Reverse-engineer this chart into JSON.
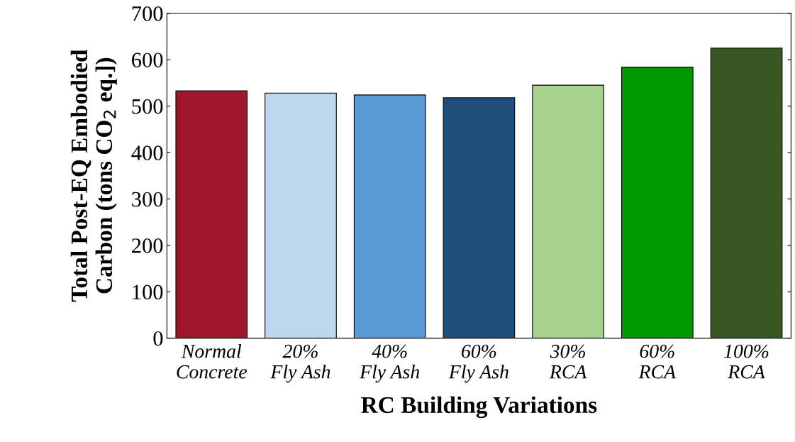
{
  "chart_data": {
    "type": "bar",
    "xlabel": "RC Building Variations",
    "ylabel": "Total Post-EQ Embodied\nCarbon (tons CO$_{2}$ eq.])",
    "categories": [
      "Normal\nConcrete",
      "20%\nFly Ash",
      "40%\nFly Ash",
      "60%\nFly Ash",
      "30%\nRCA",
      "60%\nRCA",
      "100%\nRCA"
    ],
    "values": [
      533,
      528,
      524,
      518,
      545,
      584,
      625
    ],
    "colors": [
      "#a0162d",
      "#bdd7ee",
      "#5b9bd5",
      "#1f4e79",
      "#a9d18e",
      "#009900",
      "#385723"
    ],
    "ylim": [
      0,
      700
    ],
    "yticks": [
      0,
      100,
      200,
      300,
      400,
      500,
      600,
      700
    ],
    "grid": false,
    "legend": false
  }
}
